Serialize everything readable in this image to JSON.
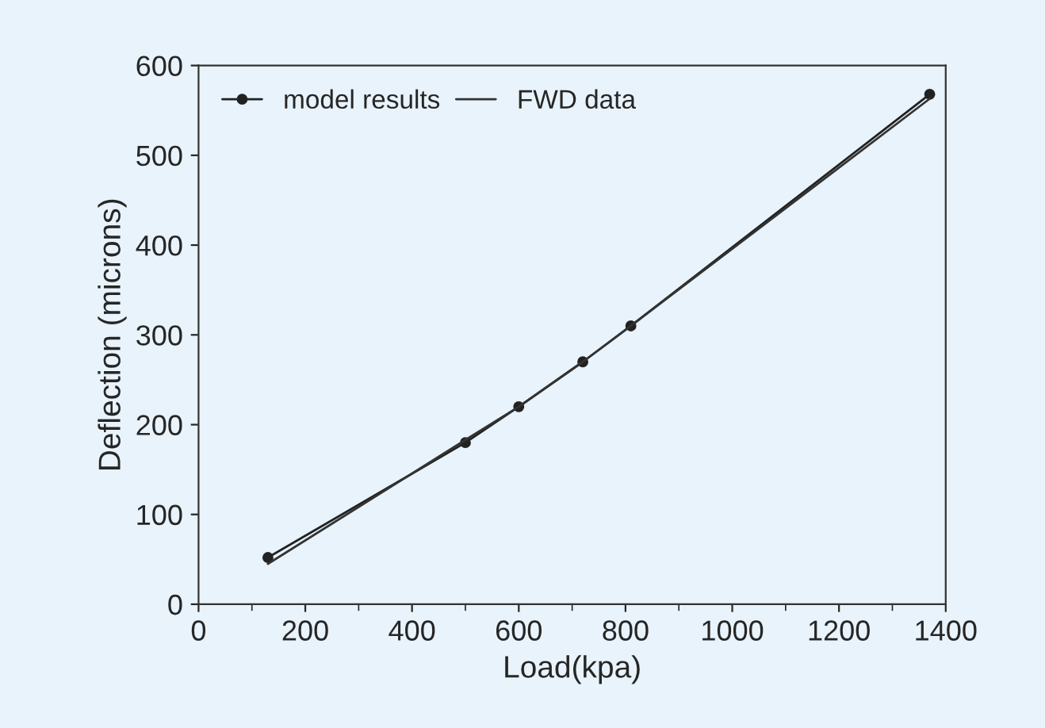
{
  "chart_data": {
    "type": "line",
    "xlabel": "Load(kpa)",
    "ylabel": "Deflection (microns)",
    "x": [
      130,
      500,
      600,
      720,
      810,
      1370
    ],
    "series": [
      {
        "name": "model results",
        "color": "#222222",
        "values": [
          52,
          180,
          220,
          270,
          310,
          568
        ],
        "marker": "circle"
      },
      {
        "name": "FWD data",
        "color": "#333333",
        "values": [
          45,
          183,
          220,
          270,
          310,
          563
        ],
        "marker": "none"
      }
    ],
    "xlim": [
      0,
      1400
    ],
    "ylim": [
      0,
      600
    ],
    "xticks": [
      0,
      200,
      400,
      600,
      800,
      1000,
      1200,
      1400
    ],
    "yticks": [
      0,
      100,
      200,
      300,
      400,
      500,
      600
    ],
    "legend": "top left",
    "grid": false,
    "line_style": "solid"
  }
}
